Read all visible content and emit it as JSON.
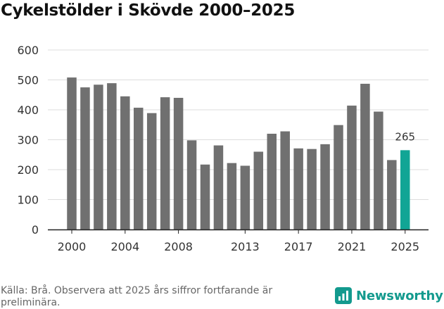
{
  "colors": {
    "bar": "#707070",
    "highlight": "#11a595",
    "grid": "#dddddd",
    "axis": "#222222",
    "brand": "#139a8e"
  },
  "chart_data": {
    "type": "bar",
    "title": "Cykelstölder i Skövde 2000–2025",
    "xlabel": "",
    "ylabel": "",
    "ylim": [
      0,
      600
    ],
    "yticks": [
      0,
      100,
      200,
      300,
      400,
      500,
      600
    ],
    "xticks": [
      2000,
      2004,
      2008,
      2013,
      2017,
      2021,
      2025
    ],
    "grid": true,
    "categories": [
      2000,
      2001,
      2002,
      2003,
      2004,
      2005,
      2006,
      2007,
      2008,
      2009,
      2010,
      2011,
      2012,
      2013,
      2014,
      2015,
      2016,
      2017,
      2018,
      2019,
      2020,
      2021,
      2022,
      2023,
      2024,
      2025
    ],
    "values": [
      508,
      475,
      484,
      489,
      445,
      407,
      389,
      442,
      440,
      298,
      217,
      281,
      222,
      213,
      260,
      320,
      328,
      271,
      269,
      285,
      349,
      414,
      487,
      394,
      232,
      265
    ],
    "highlight_category": 2025,
    "data_labels": [
      {
        "category": 2025,
        "text": "265"
      }
    ]
  },
  "footer": {
    "source": "Källa: Brå. Observera att 2025 års siffror fortfarande är preliminära.",
    "brand_name": "Newsworthy",
    "brand_icon": "bar-chart-icon"
  }
}
